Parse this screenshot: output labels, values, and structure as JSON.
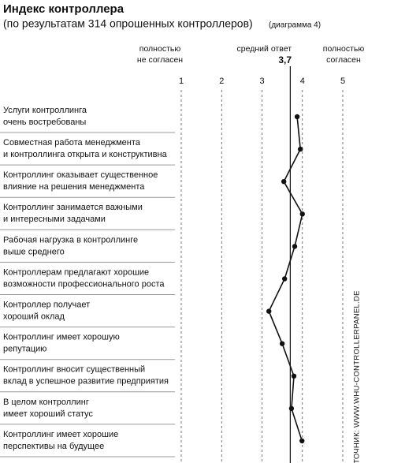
{
  "chart_data": {
    "type": "line",
    "orientation": "horizontal",
    "title": "Индекс контроллера",
    "subtitle": "(по результатам 314 опрошенных контроллеров)",
    "note": "(диаграмма 4)",
    "x_low_label": [
      "полностью",
      "не согласен"
    ],
    "x_high_label": [
      "полностью",
      "согласен"
    ],
    "mean_label": "средний ответ",
    "mean": {
      "value": 3.7,
      "label": "3,7"
    },
    "source": "ИСТОЧНИК:  WWW.WHU-CONTROLLERPANEL.DE",
    "categories": [
      [
        "Услуги контроллинга",
        "очень востребованы"
      ],
      [
        "Совместная работа менеджмента",
        "и контроллинга открыта и конструктивна"
      ],
      [
        "Контроллинг оказывает существенное",
        "влияние на решения менеджмента"
      ],
      [
        "Контроллинг занимается важными",
        "и интересными задачами"
      ],
      [
        "Рабочая нагрузка в контроллинге",
        "выше среднего"
      ],
      [
        "Контроллерам предлагают хорошие",
        "возможности профессионального роста"
      ],
      [
        "Контроллер получает",
        "хороший оклад"
      ],
      [
        "Контроллинг имеет хорошую",
        "репутацию"
      ],
      [
        "Контроллинг вносит существенный",
        "вклад в успешное развитие предприятия"
      ],
      [
        "В целом контроллинг",
        "имеет хороший статус"
      ],
      [
        "Контроллинг имеет хорошие",
        "перспективы на будущее"
      ]
    ],
    "values": [
      3.87,
      3.95,
      3.54,
      4.0,
      3.81,
      3.56,
      3.17,
      3.5,
      3.79,
      3.73,
      3.99
    ],
    "color": "#111111",
    "xlim": [
      1,
      5
    ],
    "xticks": [
      1,
      2,
      3,
      4,
      5
    ],
    "grid": true
  }
}
